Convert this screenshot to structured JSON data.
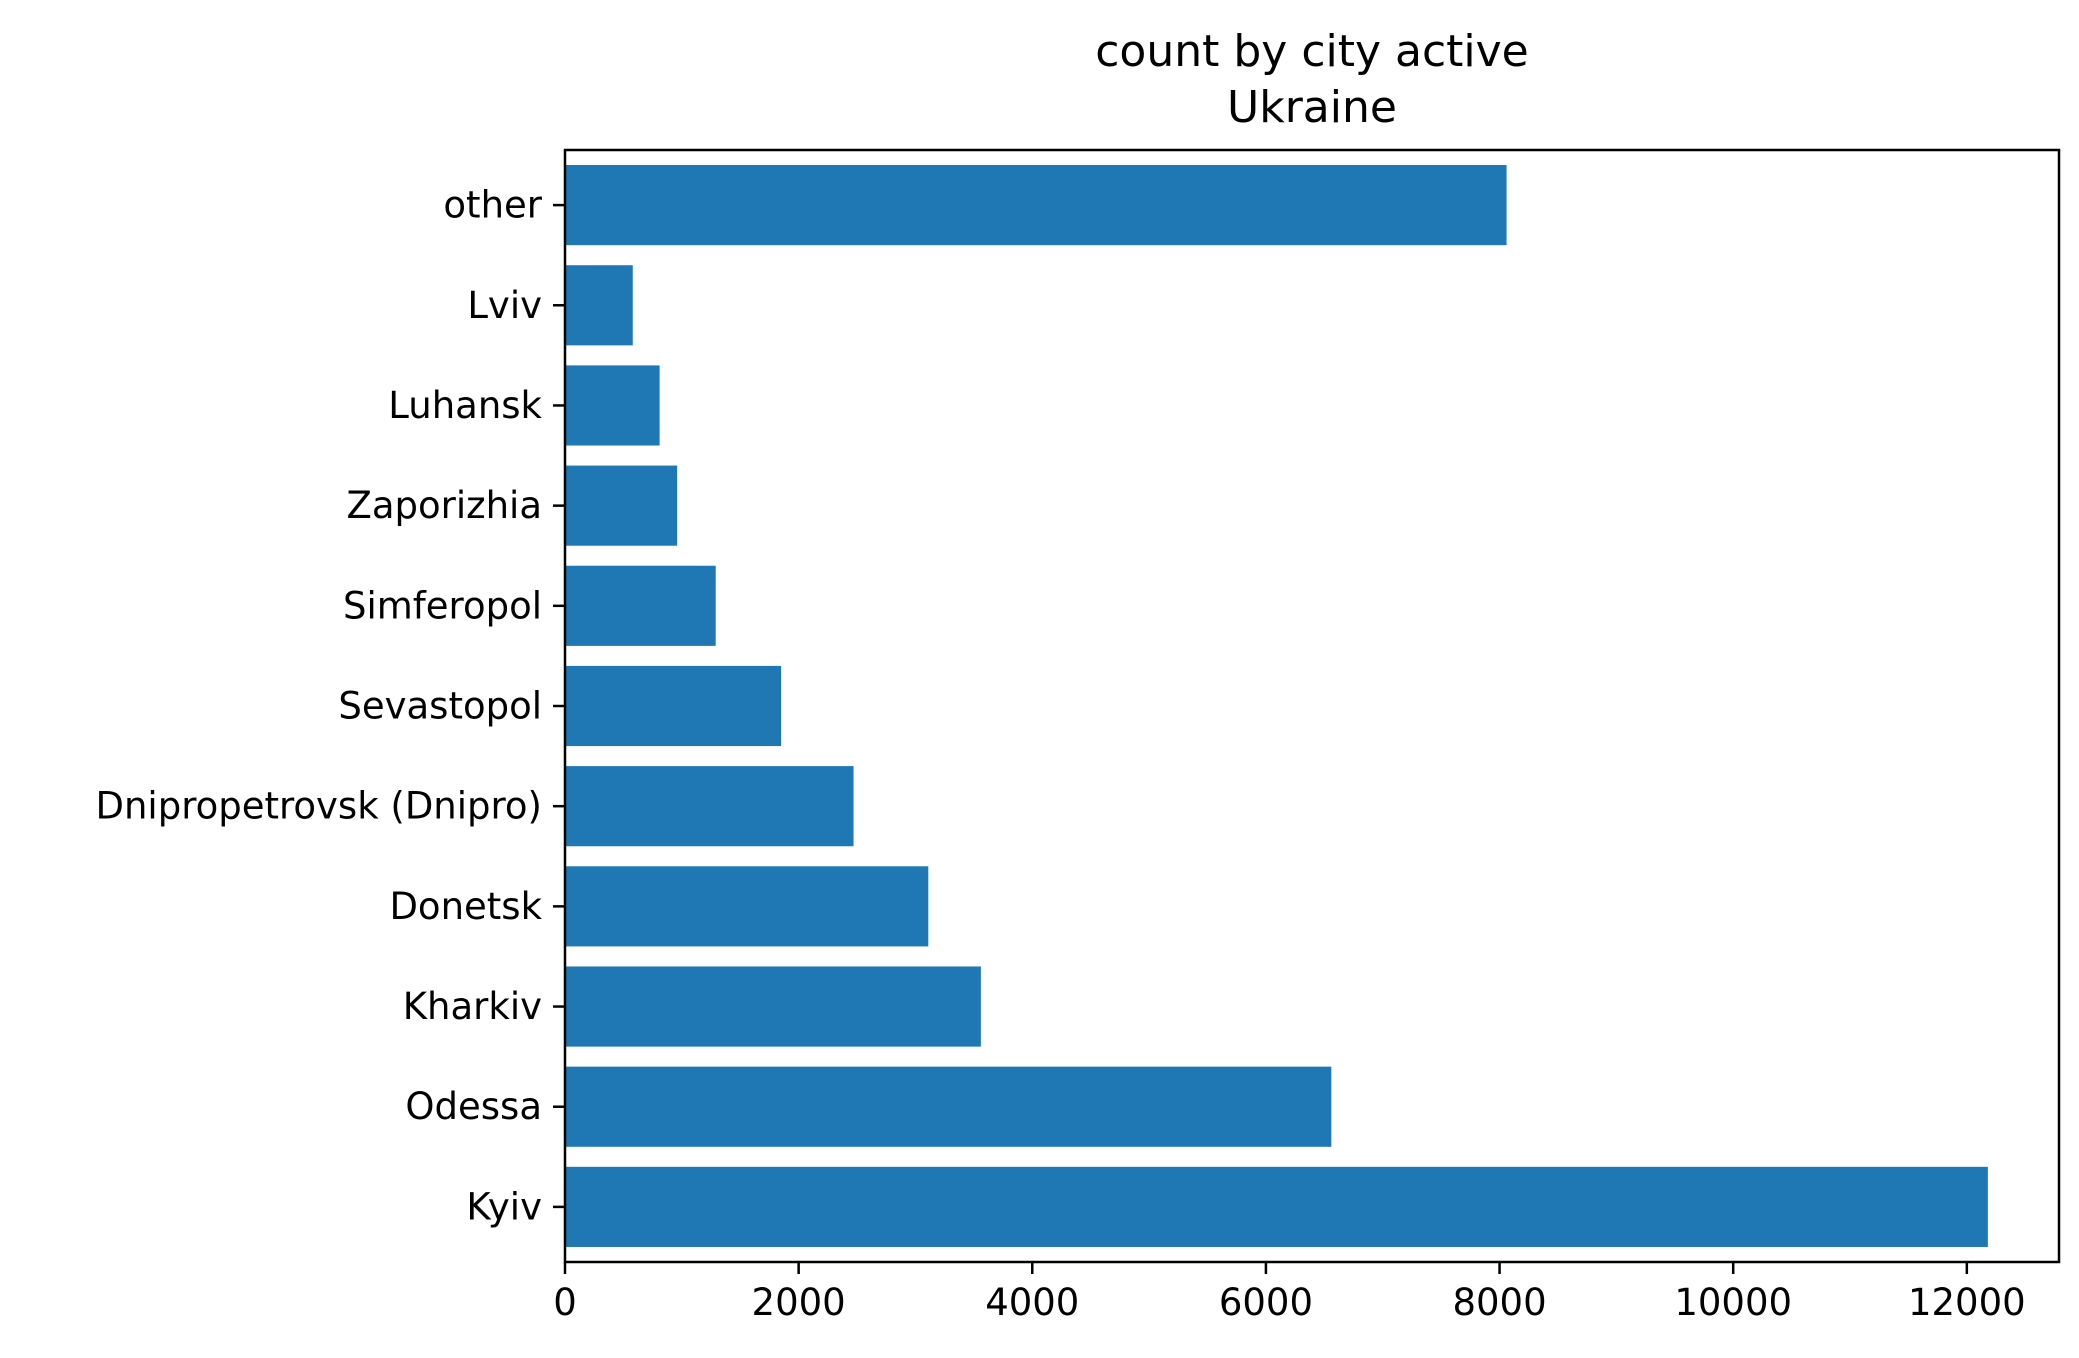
{
  "chart_data": {
    "type": "bar",
    "orientation": "horizontal",
    "title": [
      "count by city active",
      "Ukraine"
    ],
    "xlabel": "",
    "ylabel": "",
    "categories": [
      "Kyiv",
      "Odessa",
      "Kharkiv",
      "Donetsk",
      "Dnipropetrovsk (Dnipro)",
      "Sevastopol",
      "Simferopol",
      "Zaporizhia",
      "Luhansk",
      "Lviv",
      "other"
    ],
    "values": [
      12180,
      6560,
      3560,
      3110,
      2470,
      1850,
      1290,
      960,
      810,
      580,
      8060
    ],
    "xlim": [
      0,
      12789
    ],
    "xticks": [
      0,
      2000,
      4000,
      6000,
      8000,
      10000,
      12000
    ],
    "xtick_labels": [
      "0",
      "2000",
      "4000",
      "6000",
      "8000",
      "10000",
      "12000"
    ],
    "grid": false,
    "legend": "none",
    "bar_color": "#1f77b4"
  }
}
